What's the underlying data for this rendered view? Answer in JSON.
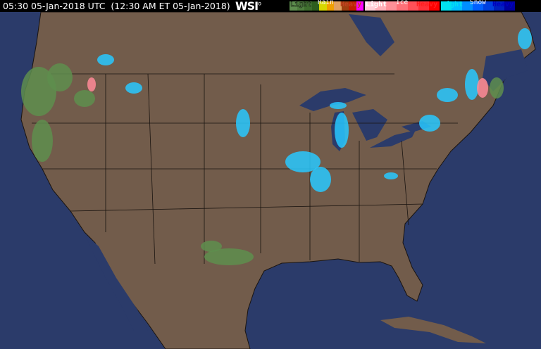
{
  "header": {
    "timestamp": "05:30 05-Jan-2018 UTC  (12:30 AM ET 05-Jan-2018)",
    "logo": "WSI"
  },
  "legend": {
    "rain": {
      "title": "Rain",
      "light": "Light",
      "heavy": "Heavy",
      "colors": [
        "#5e8e4e",
        "#4e7e3e",
        "#3e6e2e",
        "#2e5e1e",
        "#d8d800",
        "#f0a000",
        "#e0a060",
        "#a04010",
        "#c02000",
        "#ff00ff"
      ]
    },
    "ice": {
      "title": "Ice",
      "light": "Light",
      "heavy": "Heavy",
      "colors": [
        "#ffd0d8",
        "#ffb0b8",
        "#ff9098",
        "#ff7078",
        "#ff5058",
        "#ff3038",
        "#ff0000"
      ]
    },
    "snow": {
      "title": "Snow",
      "light": "Light",
      "heavy": "Heavy",
      "colors": [
        "#00e0f0",
        "#00c0ff",
        "#0090ff",
        "#0060ff",
        "#0040e0",
        "#0020c0",
        "#0000a0"
      ]
    }
  },
  "map_colors": {
    "ocean": "#2b3b6a",
    "land": "#725c4b",
    "borders": "#1a1410",
    "rain": "#5e8e4e",
    "snow": "#28c8ff",
    "ice": "#ff8a98"
  }
}
